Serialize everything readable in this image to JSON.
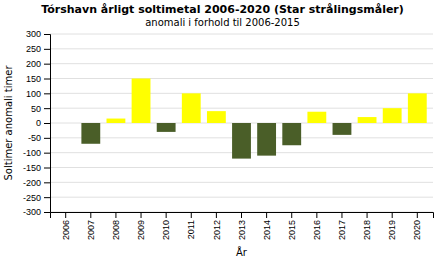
{
  "chart_data": {
    "type": "bar",
    "title": "Tórshavn årligt soltimetal 2006-2020 (Star strålingsmåler)",
    "subtitle": "anomali i forhold til 2006-2015",
    "categories": [
      "2006",
      "2007",
      "2008",
      "2009",
      "2010",
      "2011",
      "2012",
      "2013",
      "2014",
      "2015",
      "2016",
      "2017",
      "2018",
      "2019",
      "2020"
    ],
    "values": [
      0,
      -70,
      15,
      150,
      -30,
      100,
      40,
      -120,
      -110,
      -75,
      38,
      -40,
      20,
      50,
      100
    ],
    "colors": [
      "#ffff00",
      "#4a5e28",
      "#ffff00",
      "#ffff00",
      "#4a5e28",
      "#ffff00",
      "#ffff00",
      "#4a5e28",
      "#4a5e28",
      "#4a5e28",
      "#ffff00",
      "#4a5e28",
      "#ffff00",
      "#ffff00",
      "#ffff00"
    ],
    "x_label": "År",
    "y_label": "Soltimer anomali timer",
    "ylim": [
      -300,
      300
    ],
    "yticks": [
      -300,
      -250,
      -200,
      -150,
      -100,
      -50,
      0,
      50,
      100,
      150,
      200,
      250,
      300
    ],
    "grid": true
  }
}
